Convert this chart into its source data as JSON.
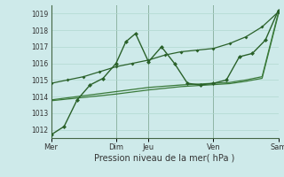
{
  "background_color": "#ceeaea",
  "grid_color": "#b0d8d0",
  "title": "Pression niveau de la mer( hPa )",
  "ylim": [
    1011.5,
    1019.5
  ],
  "yticks": [
    1012,
    1013,
    1014,
    1015,
    1016,
    1017,
    1018,
    1019
  ],
  "xlim": [
    0,
    7
  ],
  "xtick_positions": [
    0,
    2,
    3,
    5,
    7
  ],
  "xtick_labels": [
    "Mer",
    "Dim",
    "Jeu",
    "Ven",
    "Sam"
  ],
  "vlines": [
    0,
    2,
    3,
    5,
    7
  ],
  "series1": {
    "x": [
      0,
      0.4,
      0.8,
      1.2,
      1.6,
      2.0,
      2.3,
      2.6,
      3.0,
      3.4,
      3.8,
      4.2,
      4.6,
      5.0,
      5.4,
      5.8,
      6.2,
      6.6,
      7.0
    ],
    "y": [
      1011.7,
      1012.2,
      1013.8,
      1014.7,
      1015.1,
      1016.0,
      1017.3,
      1017.8,
      1016.1,
      1017.0,
      1016.0,
      1014.8,
      1014.7,
      1014.8,
      1015.0,
      1016.4,
      1016.6,
      1017.4,
      1019.2
    ],
    "color": "#2a612a",
    "marker": "D",
    "markersize": 2.5,
    "linewidth": 1.0
  },
  "series2": {
    "x": [
      0,
      0.5,
      1.0,
      1.5,
      2.0,
      2.5,
      3.0,
      3.5,
      4.0,
      4.5,
      5.0,
      5.5,
      6.0,
      6.5,
      7.0
    ],
    "y": [
      1014.8,
      1015.0,
      1015.2,
      1015.5,
      1015.8,
      1016.0,
      1016.2,
      1016.5,
      1016.7,
      1016.8,
      1016.9,
      1017.2,
      1017.6,
      1018.2,
      1019.1
    ],
    "color": "#2a612a",
    "marker": "D",
    "markersize": 2.0,
    "linewidth": 0.9
  },
  "series3": {
    "x": [
      0,
      1.0,
      2.0,
      3.0,
      4.0,
      5.0,
      5.5,
      6.0,
      6.5,
      7.0
    ],
    "y": [
      1013.8,
      1014.05,
      1014.3,
      1014.55,
      1014.7,
      1014.8,
      1014.85,
      1015.0,
      1015.2,
      1019.05
    ],
    "color": "#3a7a3a",
    "marker": null,
    "linewidth": 0.9
  },
  "series4": {
    "x": [
      0,
      1.0,
      2.0,
      3.0,
      4.0,
      5.0,
      5.5,
      6.0,
      6.5,
      7.0
    ],
    "y": [
      1013.75,
      1013.95,
      1014.15,
      1014.4,
      1014.6,
      1014.72,
      1014.78,
      1014.92,
      1015.1,
      1018.95
    ],
    "color": "#3a7a3a",
    "marker": null,
    "linewidth": 0.9
  }
}
